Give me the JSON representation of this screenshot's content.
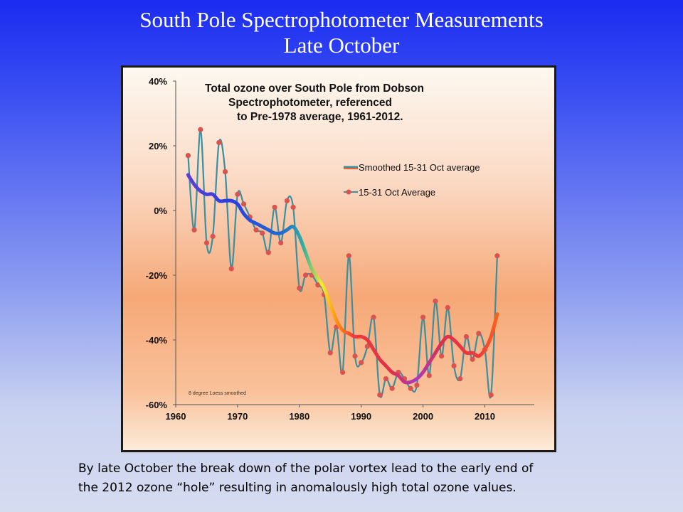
{
  "slide": {
    "title_line1": "South Pole Spectrophotometer Measurements",
    "title_line2": "Late October"
  },
  "caption": {
    "line1": "By late October the break down of the polar vortex lead to the early end of",
    "line2": "the 2012 ozone “hole” resulting in anomalously high total ozone values."
  },
  "colors": {
    "raw_line": "#3a8fa0",
    "raw_marker": "#d9534f",
    "plot_bg_top": "#fdf6ec",
    "plot_bg_mid": "#f6a877"
  },
  "chart_data": {
    "type": "line",
    "title_lines": [
      "Total ozone over South Pole from Dobson",
      "Spectrophotometer, referenced",
      "to Pre-1978 average, 1961-2012."
    ],
    "xlabel": "",
    "ylabel": "",
    "xlim": [
      1960,
      2018
    ],
    "ylim": [
      -60,
      40
    ],
    "x_ticks": [
      1960,
      1970,
      1980,
      1990,
      2000,
      2010
    ],
    "x_tick_labels": [
      "1960",
      "1970",
      "1980",
      "1990",
      "2000",
      "2010"
    ],
    "y_ticks": [
      40,
      20,
      0,
      -20,
      -40,
      -60
    ],
    "y_tick_labels": [
      "40%",
      "20%",
      "0%",
      "-20%",
      "-40%",
      "-60%"
    ],
    "legend_position": "right",
    "note": "8 degree Loess smoothed",
    "series": [
      {
        "name": "Smoothed 15-31 Oct average",
        "style": "rainbow-gradient-line",
        "x": [
          1962,
          1963,
          1964,
          1965,
          1966,
          1967,
          1968,
          1969,
          1970,
          1971,
          1972,
          1973,
          1974,
          1975,
          1976,
          1977,
          1978,
          1979,
          1980,
          1981,
          1982,
          1983,
          1984,
          1985,
          1986,
          1987,
          1988,
          1989,
          1990,
          1991,
          1992,
          1993,
          1994,
          1995,
          1996,
          1997,
          1998,
          1999,
          2000,
          2001,
          2002,
          2003,
          2004,
          2005,
          2006,
          2007,
          2008,
          2009,
          2010,
          2011,
          2012
        ],
        "y": [
          11,
          8,
          6,
          5,
          5,
          3,
          3,
          3,
          2,
          -1,
          -3,
          -4,
          -5,
          -6,
          -7,
          -7,
          -6,
          -5,
          -8,
          -13,
          -18,
          -21,
          -24,
          -29,
          -34,
          -37,
          -38,
          -39,
          -39,
          -40,
          -43,
          -46,
          -48,
          -50,
          -51,
          -53,
          -53,
          -52,
          -50,
          -47,
          -44,
          -41,
          -39,
          -40,
          -42,
          -44,
          -44,
          -45,
          -43,
          -39,
          -32
        ]
      },
      {
        "name": "15-31 Oct Average",
        "style": "line-with-markers",
        "x": [
          1962,
          1963,
          1964,
          1965,
          1966,
          1967,
          1968,
          1969,
          1970,
          1971,
          1972,
          1973,
          1974,
          1975,
          1976,
          1977,
          1978,
          1979,
          1980,
          1981,
          1982,
          1983,
          1984,
          1985,
          1986,
          1987,
          1988,
          1989,
          1990,
          1991,
          1992,
          1993,
          1994,
          1995,
          1996,
          1997,
          1998,
          1999,
          2000,
          2001,
          2002,
          2003,
          2004,
          2005,
          2006,
          2007,
          2008,
          2009,
          2010,
          2011,
          2012
        ],
        "y": [
          17,
          -6,
          25,
          -10,
          -8,
          21,
          12,
          -18,
          5,
          2,
          -2,
          -6,
          -7,
          -13,
          1,
          -10,
          3,
          1,
          -24,
          -20,
          -20,
          -23,
          -26,
          -44,
          -36,
          -50,
          -14,
          -45,
          -47,
          -42,
          -33,
          -57,
          -52,
          -55,
          -50,
          -52,
          -55,
          -54,
          -33,
          -51,
          -28,
          -45,
          -30,
          -48,
          -52,
          -39,
          -46,
          -38,
          -43,
          -57,
          -14
        ]
      }
    ]
  }
}
